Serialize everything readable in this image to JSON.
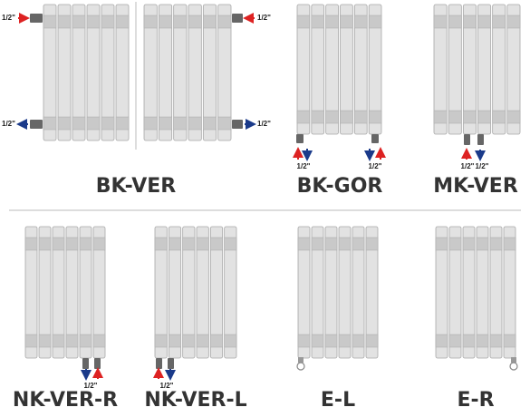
{
  "panels": [
    {
      "label": "BK-VER",
      "pipe_labels": [
        "1/2\"",
        "1/2\"",
        "1/2\"",
        "1/2\""
      ]
    },
    {
      "label": "BK-GOR",
      "pipe_labels": [
        "1/2\"",
        "1/2\""
      ]
    },
    {
      "label": "MK-VER",
      "pipe_labels": [
        "1/2\"",
        "1/2\""
      ]
    },
    {
      "label": "NK-VER-R",
      "pipe_labels": [
        "1/2\""
      ]
    },
    {
      "label": "NK-VER-L",
      "pipe_labels": [
        "1/2\""
      ]
    },
    {
      "label": "E-L"
    },
    {
      "label": "E-R"
    }
  ]
}
